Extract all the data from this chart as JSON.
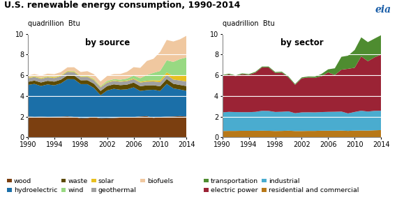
{
  "title": "U.S. renewable energy consumption, 1990-2014",
  "ylabel": "quadrillion  Btu",
  "years": [
    1990,
    1991,
    1992,
    1993,
    1994,
    1995,
    1996,
    1997,
    1998,
    1999,
    2000,
    2001,
    2002,
    2003,
    2004,
    2005,
    2006,
    2007,
    2008,
    2009,
    2010,
    2011,
    2012,
    2013,
    2014
  ],
  "source": {
    "wood": [
      2.02,
      1.98,
      2.0,
      1.98,
      1.99,
      2.0,
      2.03,
      1.97,
      1.84,
      1.87,
      1.96,
      1.83,
      1.84,
      1.87,
      1.91,
      1.94,
      1.96,
      2.02,
      2.05,
      1.88,
      1.97,
      2.0,
      2.02,
      2.05,
      2.02
    ],
    "hydroelectric": [
      3.04,
      3.18,
      2.96,
      3.13,
      3.03,
      3.21,
      3.59,
      3.64,
      3.3,
      3.27,
      2.81,
      2.24,
      2.69,
      2.82,
      2.69,
      2.7,
      2.87,
      2.46,
      2.51,
      2.72,
      2.51,
      3.17,
      2.71,
      2.57,
      2.47
    ],
    "waste": [
      0.3,
      0.32,
      0.34,
      0.35,
      0.36,
      0.36,
      0.37,
      0.37,
      0.37,
      0.38,
      0.41,
      0.41,
      0.42,
      0.43,
      0.44,
      0.45,
      0.46,
      0.46,
      0.46,
      0.43,
      0.45,
      0.46,
      0.44,
      0.44,
      0.46
    ],
    "geothermal": [
      0.34,
      0.35,
      0.35,
      0.34,
      0.34,
      0.33,
      0.34,
      0.32,
      0.32,
      0.33,
      0.34,
      0.35,
      0.33,
      0.33,
      0.33,
      0.34,
      0.34,
      0.35,
      0.36,
      0.37,
      0.4,
      0.41,
      0.41,
      0.43,
      0.44
    ],
    "solar": [
      0.06,
      0.06,
      0.06,
      0.07,
      0.07,
      0.07,
      0.07,
      0.07,
      0.07,
      0.07,
      0.07,
      0.06,
      0.06,
      0.06,
      0.06,
      0.06,
      0.07,
      0.08,
      0.09,
      0.11,
      0.16,
      0.23,
      0.35,
      0.47,
      0.6
    ],
    "wind": [
      0.03,
      0.03,
      0.04,
      0.04,
      0.04,
      0.03,
      0.03,
      0.04,
      0.03,
      0.05,
      0.06,
      0.07,
      0.11,
      0.11,
      0.14,
      0.18,
      0.26,
      0.34,
      0.55,
      0.72,
      0.92,
      1.17,
      1.36,
      1.6,
      1.73
    ],
    "biofuels": [
      0.18,
      0.19,
      0.22,
      0.24,
      0.27,
      0.3,
      0.33,
      0.36,
      0.38,
      0.42,
      0.45,
      0.43,
      0.48,
      0.49,
      0.55,
      0.66,
      0.82,
      1.0,
      1.36,
      1.36,
      1.84,
      1.97,
      1.97,
      1.91,
      2.1
    ]
  },
  "source_colors": {
    "wood": "#7B3F10",
    "hydroelectric": "#1B6FA8",
    "waste": "#5C4A00",
    "geothermal": "#A0A0A0",
    "solar": "#E8C020",
    "wind": "#98D982",
    "biofuels": "#F0C8A0"
  },
  "sector": {
    "residential_commercial": [
      0.61,
      0.62,
      0.62,
      0.63,
      0.63,
      0.63,
      0.64,
      0.63,
      0.61,
      0.62,
      0.64,
      0.61,
      0.61,
      0.62,
      0.62,
      0.64,
      0.64,
      0.64,
      0.65,
      0.62,
      0.65,
      0.66,
      0.65,
      0.68,
      0.7
    ],
    "industrial": [
      1.8,
      1.84,
      1.82,
      1.8,
      1.8,
      1.83,
      1.92,
      1.92,
      1.84,
      1.85,
      1.87,
      1.72,
      1.8,
      1.8,
      1.79,
      1.8,
      1.82,
      1.83,
      1.84,
      1.69,
      1.8,
      1.91,
      1.84,
      1.88,
      1.87
    ],
    "electric_power": [
      3.54,
      3.62,
      3.47,
      3.67,
      3.6,
      3.79,
      4.2,
      4.2,
      3.77,
      3.78,
      3.27,
      2.74,
      3.29,
      3.36,
      3.34,
      3.46,
      3.82,
      3.55,
      4.05,
      4.31,
      4.27,
      5.25,
      4.86,
      5.17,
      5.42
    ],
    "transportation": [
      0.07,
      0.07,
      0.08,
      0.08,
      0.08,
      0.08,
      0.08,
      0.09,
      0.09,
      0.09,
      0.1,
      0.08,
      0.09,
      0.1,
      0.12,
      0.23,
      0.29,
      0.65,
      1.24,
      1.27,
      1.72,
      1.84,
      1.85,
      1.81,
      1.88
    ]
  },
  "sector_colors": {
    "residential_commercial": "#B87818",
    "industrial": "#4AACCF",
    "electric_power": "#9B2335",
    "transportation": "#4E8C30"
  },
  "ylim": [
    0,
    10
  ],
  "yticks": [
    0,
    2,
    4,
    6,
    8,
    10
  ],
  "xticks": [
    1990,
    1994,
    1998,
    2002,
    2006,
    2010,
    2014
  ],
  "bg_color": "#FFFFFF",
  "title_fontsize": 9,
  "subtitle_fontsize": 8.5,
  "label_fontsize": 7,
  "tick_fontsize": 7,
  "legend_fontsize": 6.8
}
